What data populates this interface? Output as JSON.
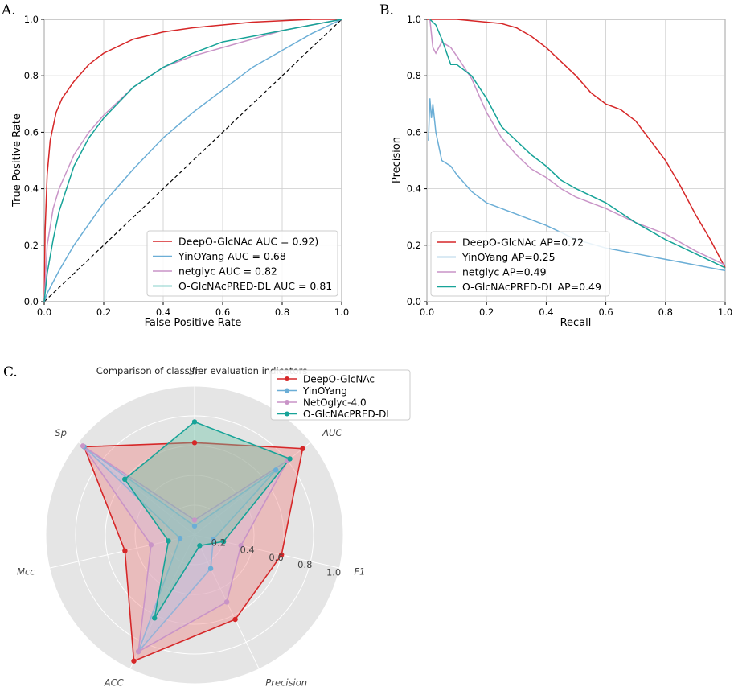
{
  "chart_data": [
    {
      "type": "line",
      "panel_label": "A.",
      "title": "",
      "xlabel": "False Positive Rate",
      "ylabel": "True Positive Rate",
      "xlim": [
        0,
        1
      ],
      "ylim": [
        0,
        1
      ],
      "xticks": [
        "0.0",
        "0.2",
        "0.4",
        "0.6",
        "0.8",
        "1.0"
      ],
      "yticks": [
        "0.0",
        "0.2",
        "0.4",
        "0.6",
        "0.8",
        "1.0"
      ],
      "grid": true,
      "legend_position": "lower-right",
      "diagonal": "dashed",
      "series": [
        {
          "name": "DeepO-GlcNAc AUC = 0.92)",
          "color": "#d62728",
          "x": [
            0,
            0.003,
            0.01,
            0.02,
            0.04,
            0.06,
            0.1,
            0.15,
            0.2,
            0.3,
            0.4,
            0.5,
            0.6,
            0.7,
            0.8,
            0.9,
            1.0
          ],
          "y": [
            0,
            0.25,
            0.45,
            0.57,
            0.67,
            0.72,
            0.78,
            0.84,
            0.88,
            0.93,
            0.955,
            0.97,
            0.98,
            0.99,
            0.995,
            1.0,
            1.0
          ]
        },
        {
          "name": "YinOYang AUC = 0.68",
          "color": "#6baed6",
          "x": [
            0,
            0.01,
            0.05,
            0.1,
            0.2,
            0.3,
            0.4,
            0.5,
            0.6,
            0.7,
            0.8,
            0.9,
            1.0
          ],
          "y": [
            0,
            0.03,
            0.11,
            0.2,
            0.35,
            0.47,
            0.58,
            0.67,
            0.75,
            0.83,
            0.89,
            0.95,
            1.0
          ]
        },
        {
          "name": "netglyc AUC = 0.82",
          "color": "#c994c7",
          "x": [
            0,
            0.01,
            0.03,
            0.05,
            0.1,
            0.15,
            0.2,
            0.3,
            0.4,
            0.5,
            0.6,
            0.7,
            0.8,
            0.9,
            1.0
          ],
          "y": [
            0,
            0.2,
            0.33,
            0.4,
            0.52,
            0.6,
            0.66,
            0.76,
            0.83,
            0.87,
            0.9,
            0.93,
            0.96,
            0.98,
            1.0
          ]
        },
        {
          "name": "O-GlcNAcPRED-DL AUC = 0.81",
          "color": "#17a398",
          "x": [
            0,
            0.01,
            0.03,
            0.05,
            0.1,
            0.15,
            0.2,
            0.3,
            0.4,
            0.5,
            0.6,
            0.7,
            0.8,
            0.9,
            1.0
          ],
          "y": [
            0,
            0.1,
            0.22,
            0.32,
            0.48,
            0.58,
            0.65,
            0.76,
            0.83,
            0.88,
            0.92,
            0.94,
            0.96,
            0.98,
            1.0
          ]
        }
      ]
    },
    {
      "type": "line",
      "panel_label": "B.",
      "title": "",
      "xlabel": "Recall",
      "ylabel": "Precision",
      "xlim": [
        0,
        1
      ],
      "ylim": [
        0,
        1
      ],
      "xticks": [
        "0.0",
        "0.2",
        "0.4",
        "0.6",
        "0.8",
        "1.0"
      ],
      "yticks": [
        "0.0",
        "0.2",
        "0.4",
        "0.6",
        "0.8",
        "1.0"
      ],
      "grid": true,
      "legend_position": "lower-left",
      "series": [
        {
          "name": "DeepO-GlcNAc AP=0.72",
          "color": "#d62728",
          "x": [
            0,
            0.05,
            0.1,
            0.15,
            0.2,
            0.25,
            0.3,
            0.35,
            0.4,
            0.45,
            0.5,
            0.55,
            0.6,
            0.65,
            0.7,
            0.75,
            0.8,
            0.85,
            0.9,
            0.95,
            1.0
          ],
          "y": [
            1.0,
            1.0,
            1.0,
            0.995,
            0.99,
            0.985,
            0.97,
            0.94,
            0.9,
            0.85,
            0.8,
            0.74,
            0.7,
            0.68,
            0.64,
            0.57,
            0.5,
            0.41,
            0.31,
            0.22,
            0.12
          ]
        },
        {
          "name": "YinOYang AP=0.25",
          "color": "#6baed6",
          "x": [
            0.005,
            0.01,
            0.015,
            0.02,
            0.03,
            0.05,
            0.08,
            0.1,
            0.15,
            0.2,
            0.25,
            0.3,
            0.4,
            0.5,
            0.6,
            0.7,
            0.8,
            0.9,
            1.0
          ],
          "y": [
            0.57,
            0.72,
            0.65,
            0.7,
            0.6,
            0.5,
            0.48,
            0.45,
            0.39,
            0.35,
            0.33,
            0.31,
            0.27,
            0.22,
            0.19,
            0.17,
            0.15,
            0.13,
            0.11
          ]
        },
        {
          "name": "netglyc AP=0.49",
          "color": "#c994c7",
          "x": [
            0.01,
            0.02,
            0.03,
            0.05,
            0.08,
            0.1,
            0.15,
            0.2,
            0.25,
            0.3,
            0.35,
            0.4,
            0.45,
            0.5,
            0.6,
            0.7,
            0.8,
            0.9,
            1.0
          ],
          "y": [
            1.0,
            0.9,
            0.88,
            0.92,
            0.9,
            0.87,
            0.79,
            0.67,
            0.58,
            0.52,
            0.47,
            0.44,
            0.4,
            0.37,
            0.33,
            0.28,
            0.24,
            0.18,
            0.13
          ]
        },
        {
          "name": "O-GlcNAcPRED-DL AP=0.49",
          "color": "#17a398",
          "x": [
            0.01,
            0.03,
            0.05,
            0.08,
            0.1,
            0.15,
            0.2,
            0.25,
            0.3,
            0.35,
            0.4,
            0.45,
            0.5,
            0.6,
            0.7,
            0.8,
            0.9,
            1.0
          ],
          "y": [
            1.0,
            0.98,
            0.93,
            0.84,
            0.84,
            0.8,
            0.72,
            0.62,
            0.57,
            0.52,
            0.48,
            0.43,
            0.4,
            0.35,
            0.28,
            0.22,
            0.17,
            0.12
          ]
        }
      ]
    },
    {
      "type": "radar",
      "panel_label": "C.",
      "title": "Comparison of classifier evaluation indicators",
      "axes": [
        "Sn",
        "AUC",
        "F1",
        "Precision",
        "ACC",
        "Mcc",
        "Sp"
      ],
      "rticks": [
        "0.2",
        "0.4",
        "0.6",
        "0.8",
        "1.0"
      ],
      "rlim": [
        0,
        1
      ],
      "legend_position": "top-right",
      "series": [
        {
          "name": "DeepO-GlcNAc",
          "color": "#d62728",
          "fill": "#f08080",
          "values": [
            0.62,
            0.93,
            0.6,
            0.63,
            0.94,
            0.48,
            0.95
          ]
        },
        {
          "name": "YinOYang",
          "color": "#6baed6",
          "fill": "#9ecae1",
          "values": [
            0.06,
            0.7,
            0.13,
            0.25,
            0.87,
            0.1,
            0.95
          ]
        },
        {
          "name": "NetOglyc-4.0",
          "color": "#c994c7",
          "fill": "#d4b9da",
          "values": [
            0.1,
            0.8,
            0.32,
            0.5,
            0.87,
            0.3,
            0.96
          ]
        },
        {
          "name": "O-GlcNAcPRED-DL",
          "color": "#17a398",
          "fill": "#66c2a4",
          "values": [
            0.76,
            0.82,
            0.2,
            0.08,
            0.62,
            0.18,
            0.6
          ]
        }
      ]
    }
  ]
}
